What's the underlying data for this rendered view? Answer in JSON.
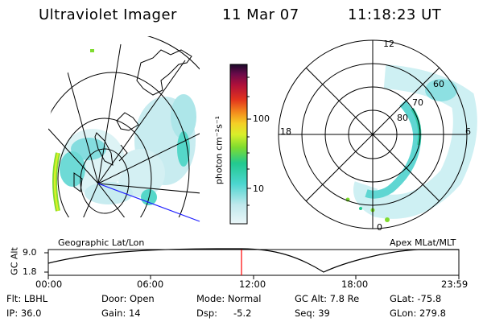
{
  "header": {
    "title": "Ultraviolet Imager",
    "date": "11 Mar 07",
    "time": "11:18:23 UT"
  },
  "left_panel": {
    "label": "Geographic Lat/Lon"
  },
  "right_panel": {
    "label": "Apex MLat/MLT",
    "mlt": {
      "top": "12",
      "left": "18",
      "right": "6",
      "bottom": "0"
    },
    "mlat": [
      "80",
      "70",
      "60"
    ]
  },
  "colorbar": {
    "unit": "photon cm⁻²s⁻¹",
    "ticks": [
      "100",
      "10"
    ]
  },
  "altitude_plot": {
    "ylabel": "GC Alt",
    "yticks": [
      "9.0",
      "1.8"
    ],
    "xticks": [
      "00:00",
      "06:00",
      "12:00",
      "18:00",
      "23:59"
    ]
  },
  "footer": {
    "flt": "Flt: LBHL",
    "door": "Door: Open",
    "mode": "Mode: Normal",
    "gcalt": "GC Alt: 7.8 Re",
    "glat": "GLat: -75.8",
    "ip": "IP: 36.0",
    "gain": "Gain: 14",
    "dsp_label": "Dsp:",
    "dsp_val": "-5.2",
    "seq": "Seq: 39",
    "glon": "GLon: 279.8"
  },
  "colors": {
    "marker": "#ff0000",
    "blue_line": "#1f1fff"
  }
}
